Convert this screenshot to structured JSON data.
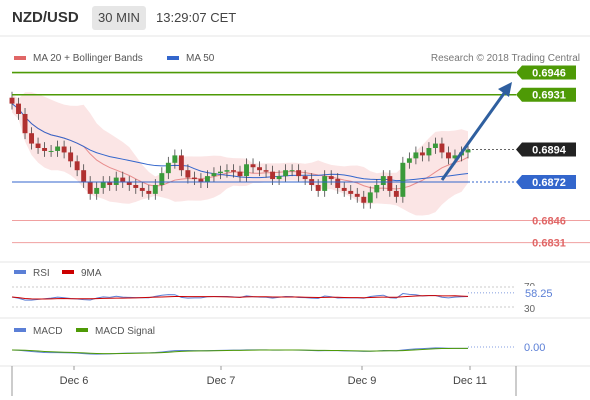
{
  "header": {
    "pair": "NZD/USD",
    "timeframe": "30 MIN",
    "time": "13:29:07 CET"
  },
  "legend": {
    "bollinger": "MA 20 + Bollinger Bands",
    "ma50": "MA 50",
    "credit": "Research © 2018 Trading Central"
  },
  "colors": {
    "green": "#4e9a06",
    "blue": "#3366cc",
    "red": "#e06666",
    "arrow": "#2f5f9f",
    "band": "#f7c6c6"
  },
  "chart_data": [
    {
      "type": "line",
      "name": "price",
      "x_tick_labels": [
        "Dec 6",
        "Dec 7",
        "Dec 9",
        "Dec 11"
      ],
      "levels": [
        {
          "value": 0.6946,
          "label": "0.6946",
          "style": "resistance"
        },
        {
          "value": 0.6931,
          "label": "0.6931",
          "style": "resistance"
        },
        {
          "value": 0.6894,
          "label": "0.6894",
          "style": "current"
        },
        {
          "value": 0.6872,
          "label": "0.6872",
          "style": "pivot"
        },
        {
          "value": 0.6846,
          "label": "0.6846",
          "style": "support"
        },
        {
          "value": 0.6831,
          "label": "0.6831",
          "style": "support"
        }
      ],
      "ylim": [
        0.6822,
        0.6968
      ],
      "close": [
        0.6925,
        0.6918,
        0.6905,
        0.6898,
        0.6895,
        0.6893,
        0.6893,
        0.6896,
        0.6892,
        0.6886,
        0.688,
        0.6872,
        0.6864,
        0.6868,
        0.6872,
        0.687,
        0.6875,
        0.6872,
        0.687,
        0.6868,
        0.6866,
        0.6864,
        0.687,
        0.6878,
        0.6885,
        0.689,
        0.688,
        0.6875,
        0.6874,
        0.6872,
        0.6876,
        0.6878,
        0.6879,
        0.688,
        0.6879,
        0.6876,
        0.6884,
        0.6882,
        0.688,
        0.6879,
        0.6874,
        0.6876,
        0.688,
        0.688,
        0.6876,
        0.6874,
        0.687,
        0.6866,
        0.6876,
        0.6874,
        0.6868,
        0.6866,
        0.6864,
        0.6862,
        0.6858,
        0.6865,
        0.687,
        0.6876,
        0.6866,
        0.6862,
        0.6885,
        0.6888,
        0.6892,
        0.689,
        0.6895,
        0.6898,
        0.6892,
        0.6888,
        0.689,
        0.6892,
        0.6894
      ]
    },
    {
      "type": "line",
      "name": "rsi",
      "series": [
        {
          "name": "RSI"
        },
        {
          "name": "9MA"
        }
      ],
      "levels": [
        70,
        30
      ],
      "latest": "58.25",
      "tick_labels": [
        "70",
        "30"
      ]
    },
    {
      "type": "line",
      "name": "macd",
      "series": [
        {
          "name": "MACD"
        },
        {
          "name": "MACD Signal"
        }
      ],
      "latest": "0.00"
    }
  ]
}
